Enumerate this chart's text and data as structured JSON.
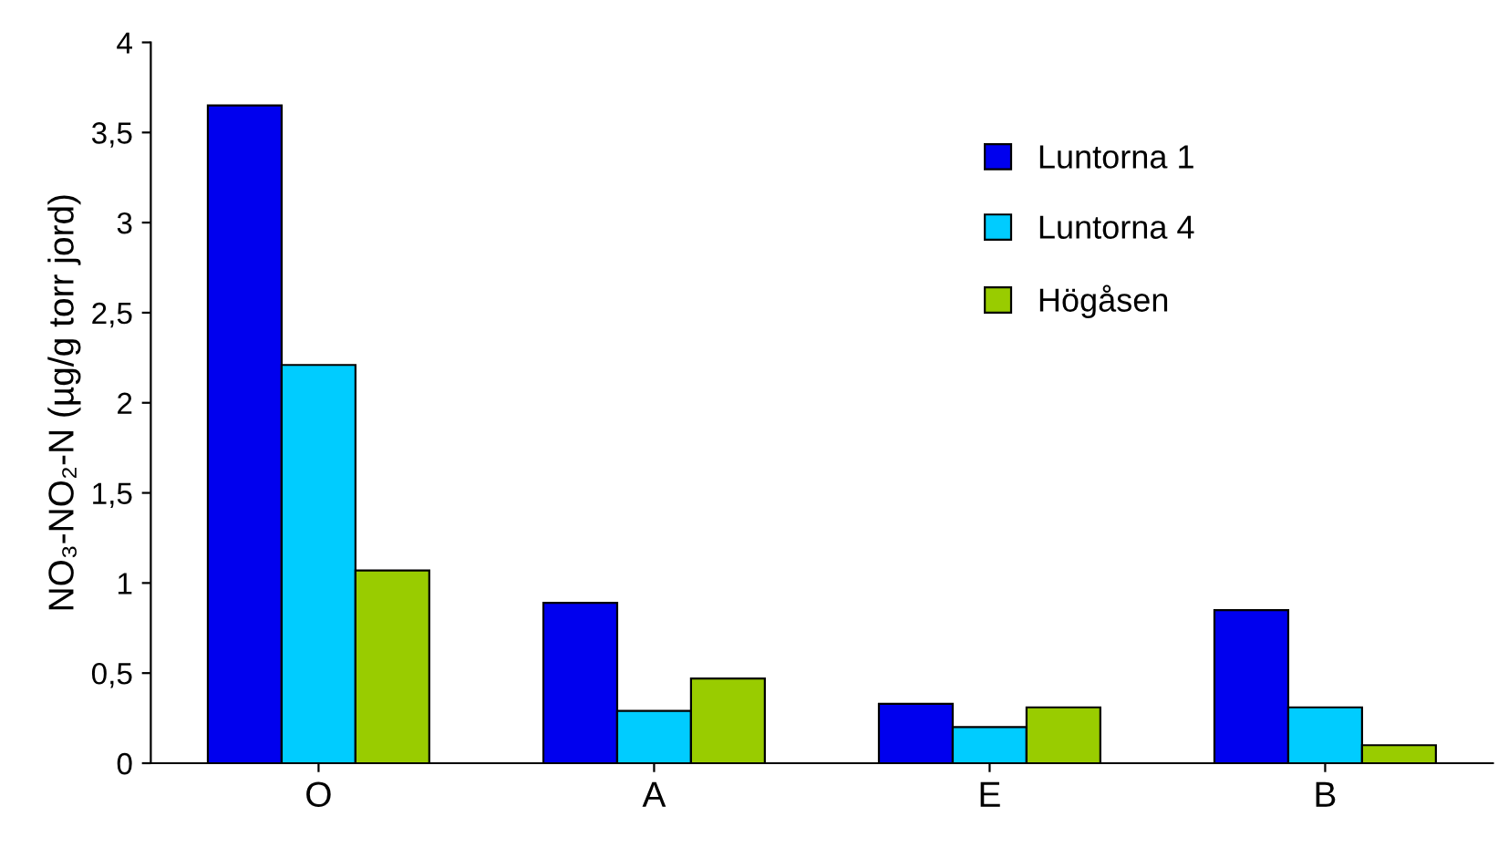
{
  "chart_data": {
    "type": "bar",
    "ylabel": "NO₃-NO₂-N (µg/g torr jord)",
    "categories": [
      "O",
      "A",
      "E",
      "B"
    ],
    "series": [
      {
        "name": "Luntorna 1",
        "color": "#0000ee",
        "values": [
          3.65,
          0.89,
          0.33,
          0.85
        ]
      },
      {
        "name": "Luntorna 4",
        "color": "#00ccff",
        "values": [
          2.21,
          0.29,
          0.2,
          0.31
        ]
      },
      {
        "name": "Högåsen",
        "color": "#99cc00",
        "values": [
          1.07,
          0.47,
          0.31,
          0.1
        ]
      }
    ],
    "ylim": [
      0,
      4
    ],
    "yticks": [
      0,
      {
        "value": 0.5,
        "label": "0,5"
      },
      1,
      {
        "value": 1.5,
        "label": "1,5"
      },
      2,
      {
        "value": 2.5,
        "label": "2,5"
      },
      3,
      {
        "value": 3.5,
        "label": "3,5"
      },
      4
    ],
    "grid": false,
    "legend": "top right"
  }
}
